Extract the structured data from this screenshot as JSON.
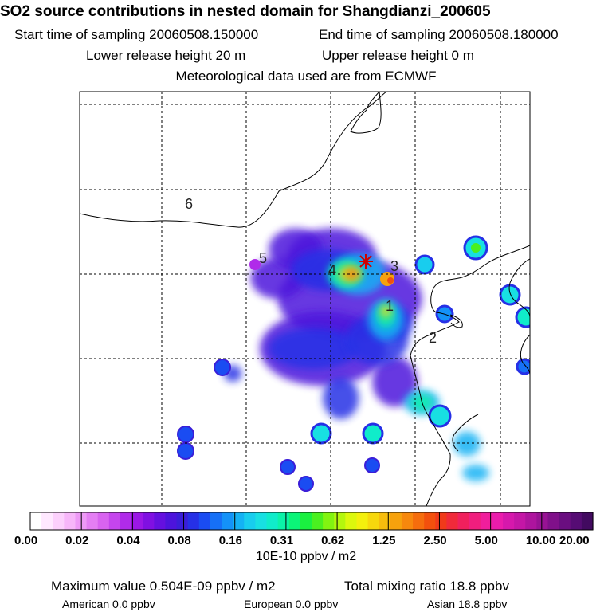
{
  "header": {
    "title": "SO2 source contributions in nested domain for Shangdianzi_200605",
    "start_time": "Start time of sampling 20060508.150000",
    "end_time": "End time of sampling 20060508.180000",
    "lower_release": "Lower release height   20 m",
    "upper_release": "Upper release height    0 m",
    "met_data": "Meteorological data used are from ECMWF"
  },
  "colors": {
    "land_line": "#000000",
    "grid_line": "#000000",
    "receptor": "#d00000"
  },
  "chart_data": {
    "type": "heatmap",
    "title": "SO2 source contributions in nested domain for Shangdianzi_200605",
    "contour_labels": [
      "1",
      "2",
      "3",
      "4",
      "5",
      "6"
    ],
    "colorbar": {
      "tick_labels": [
        "0.00",
        "0.02",
        "0.04",
        "0.08",
        "0.16",
        "0.31",
        "0.62",
        "1.25",
        "2.50",
        "5.00",
        "10.00",
        "20.00"
      ],
      "units": "10E-10 ppbv / m2",
      "colors": [
        "#ffffff",
        "#ffe8ff",
        "#fcd0fc",
        "#f7b6f9",
        "#ee99f6",
        "#e47ef3",
        "#d863f0",
        "#c545ed",
        "#b02be9",
        "#9b17e6",
        "#8010e2",
        "#6510df",
        "#4d14dc",
        "#3a1ed8",
        "#2630e6",
        "#1a4cf2",
        "#1670f7",
        "#1492f8",
        "#14b2f4",
        "#18cdee",
        "#18e0e2",
        "#10ecca",
        "#0bf3a8",
        "#0bf578",
        "#1af040",
        "#4af020",
        "#82f411",
        "#b4f70d",
        "#dcf80d",
        "#f4f00d",
        "#f7d80d",
        "#f7bd0d",
        "#f7a20d",
        "#f7880d",
        "#f56d0d",
        "#f2500d",
        "#f03a1a",
        "#f02a3a",
        "#f0205d",
        "#f01e7e",
        "#f01e9c",
        "#ea1cac",
        "#d618ac",
        "#c416a6",
        "#ae149e",
        "#981294",
        "#80108a",
        "#6a0e80",
        "#560c74",
        "#420a60"
      ]
    },
    "summary": {
      "maximum_value": "Maximum value  0.504E-09 ppbv / m2",
      "total_mixing_ratio": "Total mixing ratio      18.8 ppbv",
      "american": "American       0.0 ppbv",
      "european": "European       0.0 ppbv",
      "asian": "Asian       18.8 ppbv"
    },
    "plumes": [
      {
        "level": 12,
        "spots": [
          [
            0.56,
            0.4,
            0.1,
            0.07
          ],
          [
            0.6,
            0.5,
            0.16,
            0.1
          ],
          [
            0.54,
            0.62,
            0.14,
            0.09
          ],
          [
            0.7,
            0.7,
            0.05,
            0.06
          ],
          [
            0.44,
            0.45,
            0.06,
            0.05
          ],
          [
            0.48,
            0.38,
            0.06,
            0.05
          ]
        ]
      },
      {
        "level": 14,
        "spots": [
          [
            0.55,
            0.43,
            0.08,
            0.05
          ],
          [
            0.52,
            0.62,
            0.1,
            0.05
          ],
          [
            0.66,
            0.6,
            0.07,
            0.06
          ],
          [
            0.7,
            0.56,
            0.04,
            0.04
          ],
          [
            0.34,
            0.68,
            0.02,
            0.02
          ],
          [
            0.58,
            0.74,
            0.04,
            0.05
          ]
        ]
      },
      {
        "level": 18,
        "spots": [
          [
            0.62,
            0.44,
            0.06,
            0.05
          ],
          [
            0.68,
            0.55,
            0.04,
            0.05
          ],
          [
            0.76,
            0.75,
            0.04,
            0.03
          ],
          [
            0.86,
            0.85,
            0.03,
            0.03
          ],
          [
            0.88,
            0.92,
            0.03,
            0.02
          ]
        ]
      },
      {
        "level": 22,
        "spots": [
          [
            0.59,
            0.44,
            0.04,
            0.035
          ],
          [
            0.68,
            0.54,
            0.022,
            0.03
          ],
          [
            0.76,
            0.75,
            0.025,
            0.02
          ]
        ]
      },
      {
        "level": 30,
        "spots": [
          [
            0.6,
            0.44,
            0.025,
            0.02
          ],
          [
            0.68,
            0.53,
            0.012,
            0.015
          ]
        ]
      },
      {
        "level": 34,
        "spots": [
          [
            0.605,
            0.44,
            0.014,
            0.012
          ]
        ]
      }
    ]
  }
}
